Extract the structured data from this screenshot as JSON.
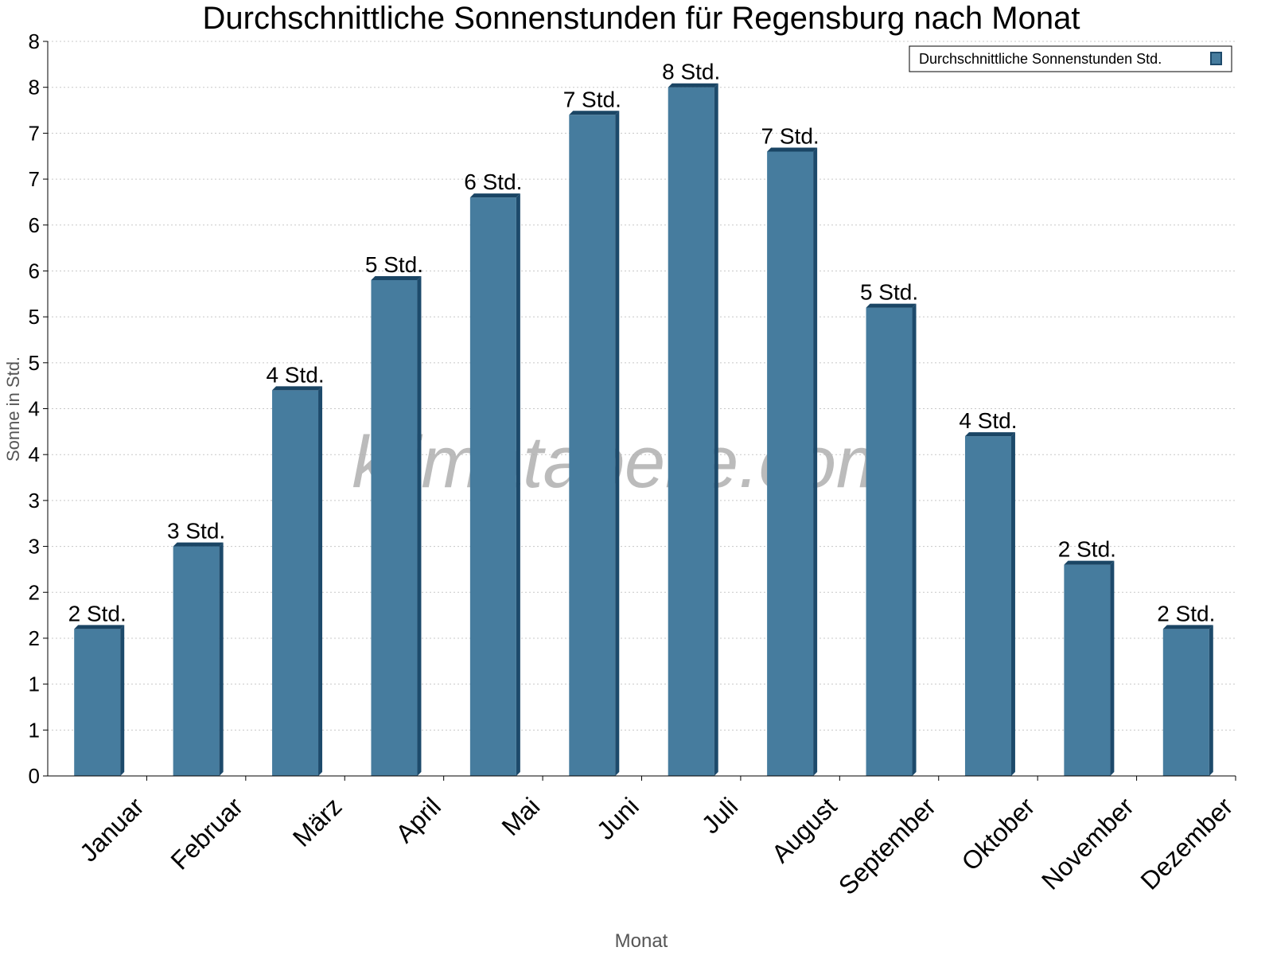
{
  "chart_data": {
    "type": "bar",
    "title": "Durchschnittliche Sonnenstunden für Regensburg nach Monat",
    "xlabel": "Monat",
    "ylabel": "Sonne in Std.",
    "watermark": "klimatabelle.com",
    "ylim": [
      0,
      8
    ],
    "yticks": [
      0,
      0.5,
      1,
      1.5,
      2,
      2.5,
      3,
      3.5,
      4,
      4.5,
      5,
      5.5,
      6,
      6.5,
      7,
      7.5,
      8
    ],
    "ytick_labels": [
      "0",
      "1",
      "1",
      "2",
      "2",
      "3",
      "3",
      "4",
      "4",
      "5",
      "5",
      "6",
      "6",
      "7",
      "7",
      "8",
      "8"
    ],
    "grid": true,
    "legend": {
      "placement": "top-right",
      "entries": [
        "Durchschnittliche Sonnenstunden Std."
      ]
    },
    "categories": [
      "Januar",
      "Februar",
      "März",
      "April",
      "Mai",
      "Juni",
      "Juli",
      "August",
      "September",
      "Oktober",
      "November",
      "Dezember"
    ],
    "series": [
      {
        "name": "Durchschnittliche Sonnenstunden Std.",
        "values": [
          1.6,
          2.5,
          4.2,
          5.4,
          6.3,
          7.2,
          7.5,
          6.8,
          5.1,
          3.7,
          2.3,
          1.6
        ],
        "data_labels": [
          "2 Std.",
          "3 Std.",
          "4 Std.",
          "5 Std.",
          "6 Std.",
          "7 Std.",
          "8 Std.",
          "7 Std.",
          "5 Std.",
          "4 Std.",
          "2 Std.",
          "2 Std."
        ]
      }
    ],
    "colors": {
      "bar_front": "#467c9e",
      "bar_side": "#1d4a6b",
      "bar_top": "#1a4564",
      "axis_title": "#555555",
      "watermark": "#b0b0b0"
    }
  }
}
